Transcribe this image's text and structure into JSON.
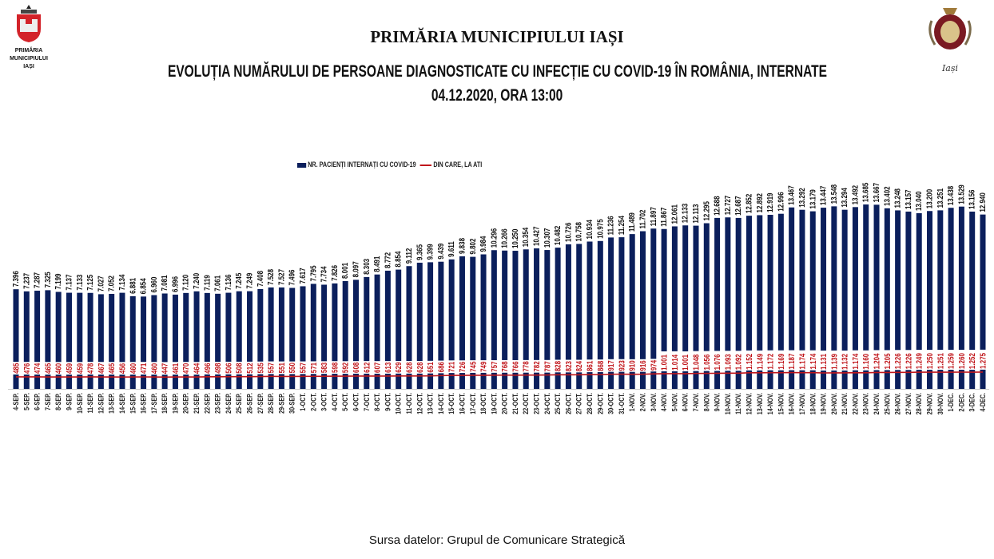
{
  "header": {
    "title": "PRIMĂRIA MUNICIPIULUI IAȘI",
    "subtitle": "EVOLUȚIA NUMĂRULUI DE PERSOANE DIAGNOSTICATE CU INFECȚIE CU COVID-19 ÎN ROMÂNIA, INTERNATE",
    "date": "04.12.2020, ORA 13:00",
    "logo_left_text": [
      "PRIMĂRIA",
      "MUNICIPIULUI",
      "IAȘI"
    ],
    "logo_right_text": "Iași"
  },
  "footer": {
    "source": "Sursa datelor: Grupul de Comunicare Strategică"
  },
  "colors": {
    "bars": "#0b1f5c",
    "line": "#c0161b",
    "ati_labels": "#c0161b"
  },
  "chart_data": {
    "type": "bar",
    "title": "EVOLUȚIA NUMĂRULUI DE PERSOANE DIAGNOSTICATE CU INFECȚIE CU COVID-19 ÎN ROMÂNIA, INTERNATE",
    "legend": [
      "NR. PACIENȚI INTERNAȚI CU COVID-19",
      "DIN CARE, LA ATI"
    ],
    "legend_position": "top-center",
    "grid": false,
    "ylim": [
      0,
      16000
    ],
    "ati_ylim": [
      -1500,
      34000
    ],
    "categories": [
      "4-SEP.",
      "5-SEP.",
      "6-SEP.",
      "7-SEP.",
      "8-SEP.",
      "9-SEP.",
      "10-SEP.",
      "11-SEP.",
      "12-SEP.",
      "13-SEP.",
      "14-SEP.",
      "15-SEP.",
      "16-SEP.",
      "17-SEP.",
      "18-SEP.",
      "19-SEP.",
      "20-SEP.",
      "21-SEP.",
      "22-SEP.",
      "23-SEP.",
      "24-SEP.",
      "25-SEP.",
      "26-SEP.",
      "27-SEP.",
      "28-SEP.",
      "29-SEP.",
      "30-SEP.",
      "1-OCT.",
      "2-OCT.",
      "3-OCT.",
      "4-OCT.",
      "5-OCT.",
      "6-OCT.",
      "7-OCT.",
      "8-OCT.",
      "9-OCT.",
      "10-OCT.",
      "11-OCT.",
      "12-OCT.",
      "13-OCT.",
      "14-OCT.",
      "15-OCT.",
      "16-OCT.",
      "17-OCT.",
      "18-OCT.",
      "19-OCT.",
      "20-OCT.",
      "21-OCT.",
      "22-OCT.",
      "23-OCT.",
      "24-OCT.",
      "25-OCT.",
      "26-OCT.",
      "27-OCT.",
      "28-OCT.",
      "29-OCT.",
      "30-OCT.",
      "31-OCT.",
      "1-NOV.",
      "2-NOV.",
      "3-NOV.",
      "4-NOV.",
      "5-NOV.",
      "6-NOV.",
      "7-NOV.",
      "8-NOV.",
      "9-NOV.",
      "10-NOV.",
      "11-NOV.",
      "12-NOV.",
      "13-NOV.",
      "14-NOV.",
      "15-NOV.",
      "16-NOV.",
      "17-NOV.",
      "18-NOV.",
      "19-NOV.",
      "20-NOV.",
      "21-NOV.",
      "22-NOV.",
      "23-NOV.",
      "24-NOV.",
      "25-NOV.",
      "26-NOV.",
      "27-NOV.",
      "28-NOV.",
      "29-NOV.",
      "30-NOV.",
      "1-DEC.",
      "2-DEC.",
      "3-DEC.",
      "4-DEC."
    ],
    "series": [
      {
        "name": "NR. PACIENȚI INTERNAȚI CU COVID-19",
        "type": "bar",
        "values": [
          7396,
          7237,
          7287,
          7325,
          7199,
          7137,
          7133,
          7125,
          7027,
          7052,
          7134,
          6881,
          6854,
          6960,
          7081,
          6996,
          7120,
          7240,
          7119,
          7061,
          7136,
          7245,
          7249,
          7408,
          7528,
          7527,
          7496,
          7617,
          7795,
          7734,
          7826,
          8001,
          8097,
          8303,
          8491,
          8772,
          8854,
          9112,
          9365,
          9399,
          9439,
          9611,
          9838,
          9802,
          9984,
          10296,
          10266,
          10250,
          10354,
          10427,
          10307,
          10482,
          10726,
          10758,
          10934,
          10975,
          11236,
          11254,
          11489,
          11702,
          11897,
          11867,
          12061,
          12133,
          12113,
          12295,
          12688,
          12727,
          12687,
          12852,
          12892,
          12919,
          12996,
          13467,
          13292,
          13179,
          13447,
          13548,
          13294,
          13492,
          13685,
          13667,
          13402,
          13248,
          13157,
          13040,
          13200,
          13251,
          13438,
          13529,
          13156,
          12940
        ]
      },
      {
        "name": "DIN CARE, LA ATI",
        "type": "line",
        "values": [
          485,
          476,
          474,
          465,
          460,
          459,
          459,
          478,
          467,
          465,
          456,
          460,
          471,
          460,
          447,
          461,
          470,
          464,
          496,
          498,
          506,
          508,
          512,
          535,
          557,
          551,
          550,
          557,
          571,
          583,
          598,
          592,
          608,
          612,
          607,
          613,
          629,
          628,
          628,
          651,
          686,
          721,
          726,
          745,
          749,
          757,
          768,
          766,
          778,
          782,
          787,
          828,
          823,
          824,
          861,
          868,
          917,
          923,
          910,
          916,
          974,
          1001,
          1014,
          1001,
          1048,
          1056,
          1076,
          1093,
          1092,
          1152,
          1149,
          1172,
          1169,
          1187,
          1174,
          1174,
          1131,
          1139,
          1132,
          1174,
          1160,
          1204,
          1205,
          1226,
          1226,
          1249,
          1250,
          1251,
          1259,
          1260,
          1252,
          1275
        ]
      }
    ]
  }
}
